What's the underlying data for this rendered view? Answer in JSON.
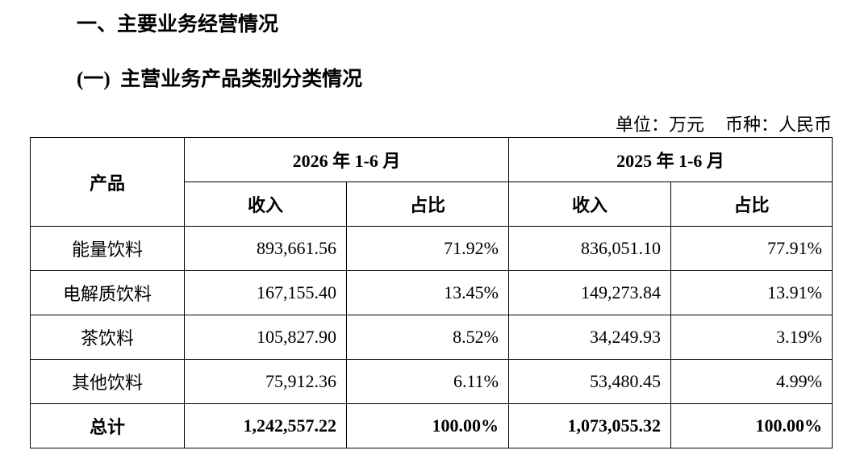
{
  "header": {
    "title": "一、主要业务经营情况",
    "subtitle": "(一)  主营业务产品类别分类情况",
    "unit": "单位：万元",
    "currency": "币种：人民币"
  },
  "table": {
    "product_header": "产品",
    "period_headers": [
      "2026 年 1-6 月",
      "2025 年 1-6 月"
    ],
    "sub_headers": [
      "收入",
      "占比",
      "收入",
      "占比"
    ],
    "rows": [
      [
        "能量饮料",
        "893,661.56",
        "71.92%",
        "836,051.10",
        "77.91%"
      ],
      [
        "电解质饮料",
        "167,155.40",
        "13.45%",
        "149,273.84",
        "13.91%"
      ],
      [
        "茶饮料",
        "105,827.90",
        "8.52%",
        "34,249.93",
        "3.19%"
      ],
      [
        "其他饮料",
        "75,912.36",
        "6.11%",
        "53,480.45",
        "4.99%"
      ],
      [
        "总计",
        "1,242,557.22",
        "100.00%",
        "1,073,055.32",
        "100.00%"
      ]
    ]
  }
}
